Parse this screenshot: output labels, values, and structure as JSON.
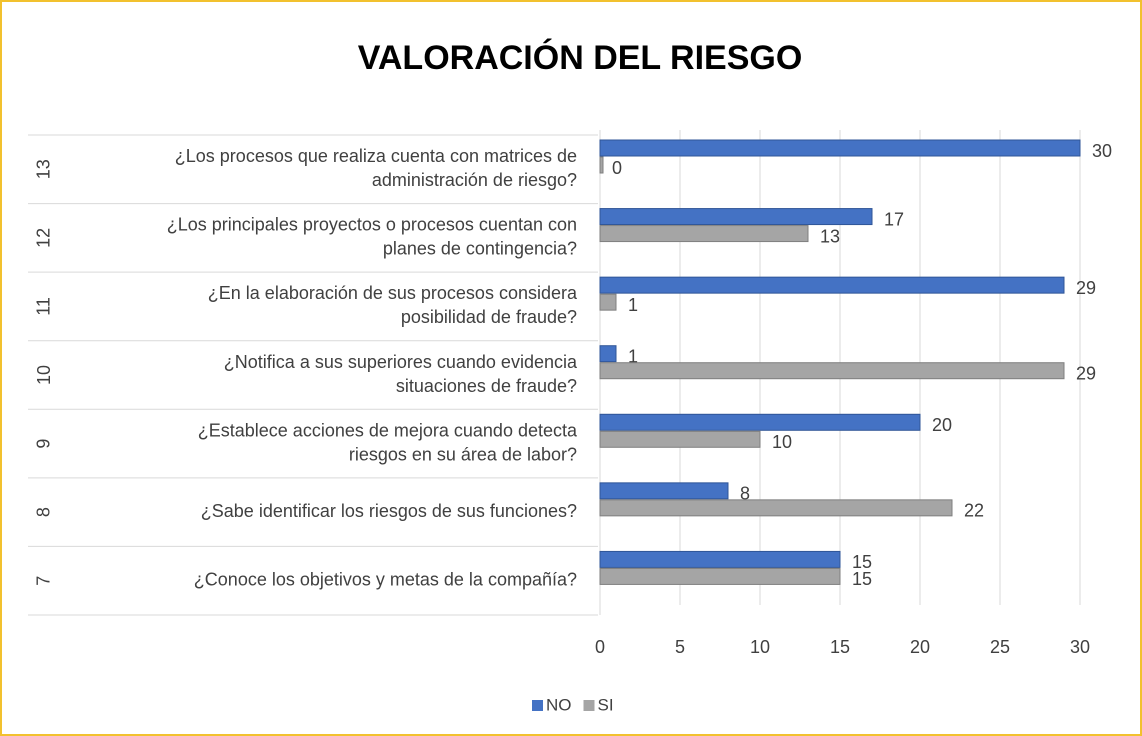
{
  "chart_data": {
    "type": "bar",
    "orientation": "horizontal",
    "title": "VALORACIÓN DEL RIESGO",
    "category_numbers": [
      "7",
      "8",
      "9",
      "10",
      "11",
      "12",
      "13"
    ],
    "categories": [
      [
        "¿Conoce los objetivos y metas de la compañía?"
      ],
      [
        "¿Sabe identificar los riesgos de sus funciones?"
      ],
      [
        "¿Establece acciones de mejora cuando detecta",
        "riesgos en su área de labor?"
      ],
      [
        "¿Notifica a sus superiores cuando evidencia",
        "situaciones de fraude?"
      ],
      [
        "¿En la elaboración de sus procesos considera",
        "posibilidad de fraude?"
      ],
      [
        "¿Los principales proyectos o procesos cuentan con",
        "planes de contingencia?"
      ],
      [
        "¿Los procesos que realiza cuenta con matrices de",
        "administración de riesgo?"
      ]
    ],
    "series": [
      {
        "name": "NO",
        "color": "#4472c4",
        "values": [
          15,
          8,
          20,
          1,
          29,
          17,
          30
        ]
      },
      {
        "name": "SI",
        "color": "#a5a5a5",
        "values": [
          15,
          22,
          10,
          29,
          1,
          13,
          0
        ]
      }
    ],
    "xlim": [
      0,
      30
    ],
    "xticks": [
      0,
      5,
      10,
      15,
      20,
      25,
      30
    ],
    "grid": true,
    "legend": "bottom"
  }
}
